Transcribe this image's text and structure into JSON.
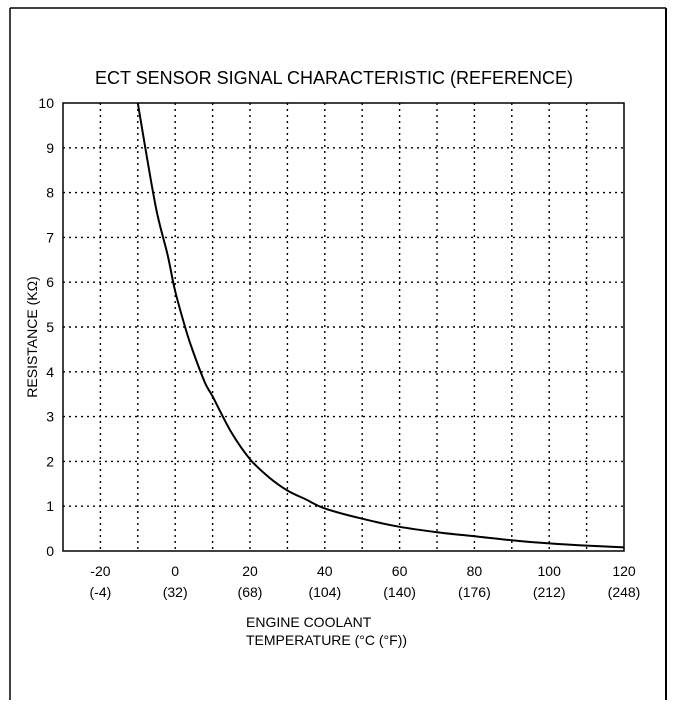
{
  "chart_data": {
    "type": "line",
    "title": "ECT SENSOR SIGNAL CHARACTERISTIC (REFERENCE)",
    "ylabel": "RESISTANCE (KΩ)",
    "xlabel_line1": "ENGINE COOLANT",
    "xlabel_line2": "TEMPERATURE (°C (°F))",
    "xlim": [
      -30,
      120
    ],
    "ylim": [
      0,
      10
    ],
    "x_ticks": [
      {
        "c": "-20",
        "f": "(-4)"
      },
      {
        "c": "0",
        "f": "(32)"
      },
      {
        "c": "20",
        "f": "(68)"
      },
      {
        "c": "40",
        "f": "(104)"
      },
      {
        "c": "60",
        "f": "(140)"
      },
      {
        "c": "80",
        "f": "(176)"
      },
      {
        "c": "100",
        "f": "(212)"
      },
      {
        "c": "120",
        "f": "(248)"
      }
    ],
    "x_tick_values": [
      -20,
      0,
      20,
      40,
      60,
      80,
      100,
      120
    ],
    "y_ticks": [
      "0",
      "1",
      "2",
      "3",
      "4",
      "5",
      "6",
      "7",
      "8",
      "9",
      "10"
    ],
    "y_tick_values": [
      0,
      1,
      2,
      3,
      4,
      5,
      6,
      7,
      8,
      9,
      10
    ],
    "grid": true,
    "series": [
      {
        "x": [
          -10,
          -8,
          -5,
          -2,
          0,
          3,
          5,
          8,
          10,
          15,
          20,
          25,
          30,
          35,
          40,
          50,
          60,
          70,
          80,
          90,
          100,
          110,
          120
        ],
        "y": [
          10,
          9.0,
          7.6,
          6.6,
          5.8,
          4.9,
          4.4,
          3.75,
          3.45,
          2.65,
          2.05,
          1.65,
          1.35,
          1.15,
          0.95,
          0.72,
          0.54,
          0.42,
          0.33,
          0.24,
          0.17,
          0.12,
          0.08
        ]
      }
    ]
  }
}
